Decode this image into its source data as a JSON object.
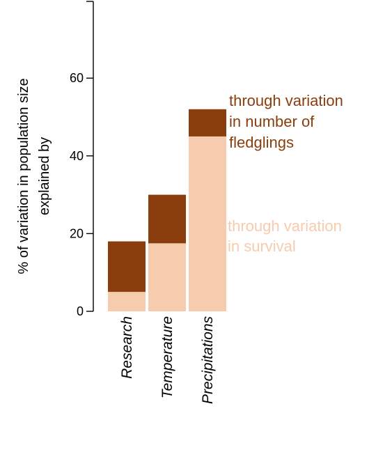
{
  "chart_data": {
    "type": "bar",
    "stacked": true,
    "categories": [
      "Research",
      "Temperature",
      "Precipitations"
    ],
    "series": [
      {
        "name": "through variation in survival",
        "values": [
          5,
          17.5,
          45
        ],
        "color": "#f7cbad"
      },
      {
        "name": "through variation in number of fledglings",
        "values": [
          13,
          12.5,
          7
        ],
        "color": "#8a3e0d"
      }
    ],
    "ylabel": [
      "% of variation in population size",
      "explained by"
    ],
    "ylim": [
      0,
      80
    ],
    "yticks": [
      0,
      20,
      40,
      60
    ],
    "grid": false,
    "legend": {
      "placement": "inline-right",
      "survival_lines": [
        "through variation",
        "in survival"
      ],
      "fledglings_lines": [
        "through variation",
        "in number of",
        "fledglings"
      ]
    }
  }
}
